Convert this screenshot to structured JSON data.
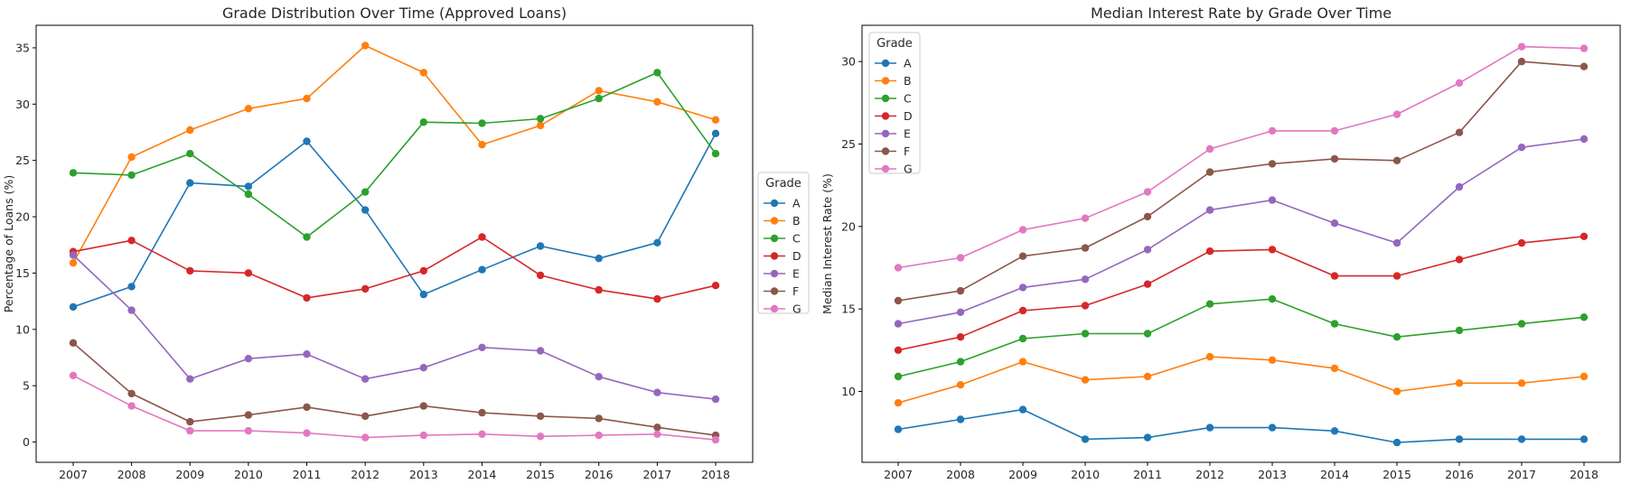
{
  "chart_data": [
    {
      "type": "line",
      "title": "Grade Distribution Over Time (Approved Loans)",
      "xlabel": "",
      "ylabel": "Percentage of Loans (%)",
      "x": [
        "2007",
        "2008",
        "2009",
        "2010",
        "2011",
        "2012",
        "2013",
        "2014",
        "2015",
        "2016",
        "2017",
        "2018"
      ],
      "ylim": [
        -1.8,
        37.0
      ],
      "yticks": [
        0,
        5,
        10,
        15,
        20,
        25,
        30,
        35
      ],
      "legend": {
        "title": "Grade",
        "placement": "outside-right"
      },
      "grid": false,
      "series": [
        {
          "name": "A",
          "color": "#1f77b4",
          "values": [
            12.0,
            13.8,
            23.0,
            22.7,
            26.7,
            20.6,
            13.1,
            15.3,
            17.4,
            16.3,
            17.7,
            27.4
          ]
        },
        {
          "name": "B",
          "color": "#ff7f0e",
          "values": [
            15.9,
            25.3,
            27.7,
            29.6,
            30.5,
            35.2,
            32.8,
            26.4,
            28.1,
            31.2,
            30.2,
            28.6
          ]
        },
        {
          "name": "C",
          "color": "#2ca02c",
          "values": [
            23.9,
            23.7,
            25.6,
            22.0,
            18.2,
            22.2,
            28.4,
            28.3,
            28.7,
            30.5,
            32.8,
            25.6
          ]
        },
        {
          "name": "D",
          "color": "#d62728",
          "values": [
            16.9,
            17.9,
            15.2,
            15.0,
            12.8,
            13.6,
            15.2,
            18.2,
            14.8,
            13.5,
            12.7,
            13.9
          ]
        },
        {
          "name": "E",
          "color": "#9467bd",
          "values": [
            16.6,
            11.7,
            5.6,
            7.4,
            7.8,
            5.6,
            6.6,
            8.4,
            8.1,
            5.8,
            4.4,
            3.8
          ]
        },
        {
          "name": "F",
          "color": "#8c564b",
          "values": [
            8.8,
            4.3,
            1.8,
            2.4,
            3.1,
            2.3,
            3.2,
            2.6,
            2.3,
            2.1,
            1.3,
            0.6
          ]
        },
        {
          "name": "G",
          "color": "#e377c2",
          "values": [
            5.9,
            3.2,
            1.0,
            1.0,
            0.8,
            0.4,
            0.6,
            0.7,
            0.5,
            0.6,
            0.7,
            0.2
          ]
        }
      ]
    },
    {
      "type": "line",
      "title": "Median Interest Rate by Grade Over Time",
      "xlabel": "",
      "ylabel": "Median Interest Rate (%)",
      "x": [
        "2007",
        "2008",
        "2009",
        "2010",
        "2011",
        "2012",
        "2013",
        "2014",
        "2015",
        "2016",
        "2017",
        "2018"
      ],
      "ylim": [
        5.7,
        32.2
      ],
      "yticks": [
        10,
        15,
        20,
        25,
        30
      ],
      "legend": {
        "title": "Grade",
        "placement": "upper-left"
      },
      "grid": false,
      "series": [
        {
          "name": "A",
          "color": "#1f77b4",
          "values": [
            7.7,
            8.3,
            8.9,
            7.1,
            7.2,
            7.8,
            7.8,
            7.6,
            6.9,
            7.1,
            7.1,
            7.1
          ]
        },
        {
          "name": "B",
          "color": "#ff7f0e",
          "values": [
            9.3,
            10.4,
            11.8,
            10.7,
            10.9,
            12.1,
            11.9,
            11.4,
            10.0,
            10.5,
            10.5,
            10.9
          ]
        },
        {
          "name": "C",
          "color": "#2ca02c",
          "values": [
            10.9,
            11.8,
            13.2,
            13.5,
            13.5,
            15.3,
            15.6,
            14.1,
            13.3,
            13.7,
            14.1,
            14.5
          ]
        },
        {
          "name": "D",
          "color": "#d62728",
          "values": [
            12.5,
            13.3,
            14.9,
            15.2,
            16.5,
            18.5,
            18.6,
            17.0,
            17.0,
            18.0,
            19.0,
            19.4
          ]
        },
        {
          "name": "E",
          "color": "#9467bd",
          "values": [
            14.1,
            14.8,
            16.3,
            16.8,
            18.6,
            21.0,
            21.6,
            20.2,
            19.0,
            22.4,
            24.8,
            25.3
          ]
        },
        {
          "name": "F",
          "color": "#8c564b",
          "values": [
            15.5,
            16.1,
            18.2,
            18.7,
            20.6,
            23.3,
            23.8,
            24.1,
            24.0,
            25.7,
            30.0,
            29.7
          ]
        },
        {
          "name": "G",
          "color": "#e377c2",
          "values": [
            17.5,
            18.1,
            19.8,
            20.5,
            22.1,
            24.7,
            25.8,
            25.8,
            26.8,
            28.7,
            30.9,
            30.8
          ]
        }
      ]
    }
  ]
}
